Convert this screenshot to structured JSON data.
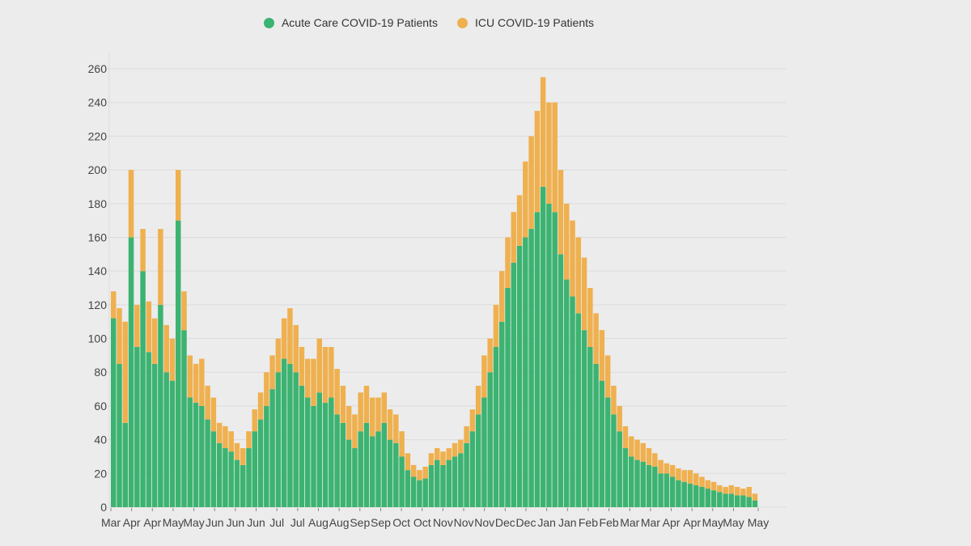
{
  "chart_data": {
    "type": "bar",
    "stacked": true,
    "title": "",
    "xlabel": "",
    "ylabel": "",
    "ylim": [
      0,
      260
    ],
    "yticks": [
      0,
      20,
      40,
      60,
      80,
      100,
      120,
      140,
      160,
      180,
      200,
      220,
      240,
      260
    ],
    "grid": true,
    "legend_position": "top",
    "xtick_labels": [
      "Mar",
      "Apr",
      "Apr",
      "May",
      "May",
      "Jun",
      "Jun",
      "Jun",
      "Jul",
      "Jul",
      "Aug",
      "Aug",
      "Sep",
      "Sep",
      "Oct",
      "Oct",
      "Nov",
      "Nov",
      "Nov",
      "Dec",
      "Dec",
      "Jan",
      "Jan",
      "Feb",
      "Feb",
      "Mar",
      "Mar",
      "Apr",
      "Apr",
      "May",
      "May",
      "May"
    ],
    "series": [
      {
        "name": "Acute Care COVID-19 Patients",
        "color": "#3cb371",
        "values": [
          112,
          85,
          50,
          160,
          95,
          140,
          92,
          85,
          120,
          80,
          75,
          170,
          105,
          65,
          62,
          60,
          52,
          45,
          38,
          35,
          33,
          28,
          25,
          35,
          45,
          52,
          60,
          70,
          80,
          88,
          85,
          80,
          72,
          65,
          60,
          68,
          62,
          65,
          55,
          50,
          40,
          35,
          45,
          50,
          42,
          45,
          50,
          40,
          38,
          30,
          22,
          18,
          16,
          17,
          25,
          28,
          25,
          28,
          30,
          32,
          38,
          45,
          55,
          65,
          80,
          95,
          110,
          130,
          145,
          155,
          160,
          165,
          175,
          190,
          180,
          175,
          150,
          135,
          125,
          115,
          105,
          95,
          85,
          75,
          65,
          55,
          45,
          35,
          30,
          28,
          27,
          25,
          24,
          20,
          20,
          18,
          16,
          15,
          14,
          13,
          12,
          11,
          10,
          9,
          8,
          8,
          7,
          7,
          6,
          4
        ]
      },
      {
        "name": "ICU COVID-19 Patients",
        "color": "#efb04f",
        "values": [
          16,
          33,
          60,
          40,
          25,
          25,
          30,
          27,
          45,
          28,
          25,
          30,
          23,
          25,
          23,
          28,
          20,
          20,
          12,
          13,
          12,
          10,
          10,
          10,
          13,
          16,
          20,
          20,
          20,
          24,
          33,
          28,
          23,
          23,
          28,
          32,
          33,
          30,
          27,
          22,
          20,
          20,
          23,
          22,
          23,
          20,
          18,
          18,
          17,
          15,
          10,
          7,
          6,
          7,
          7,
          7,
          8,
          7,
          8,
          8,
          10,
          13,
          17,
          25,
          20,
          25,
          30,
          30,
          30,
          30,
          45,
          55,
          60,
          65,
          60,
          65,
          50,
          45,
          45,
          45,
          43,
          35,
          30,
          30,
          25,
          17,
          15,
          13,
          12,
          12,
          11,
          10,
          8,
          8,
          6,
          7,
          7,
          7,
          8,
          7,
          6,
          5,
          5,
          4,
          4,
          5,
          5,
          4,
          6,
          4
        ]
      }
    ]
  }
}
